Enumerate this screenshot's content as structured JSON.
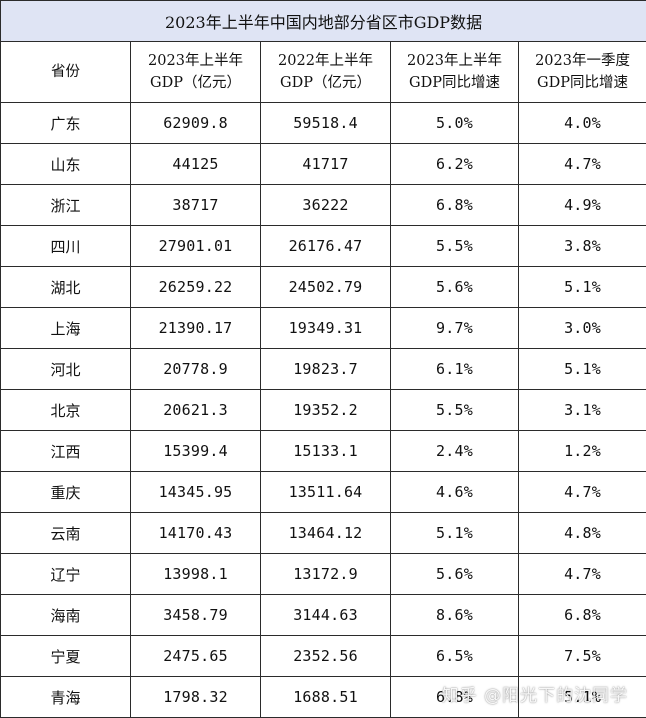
{
  "title": "2023年上半年中国内地部分省区市GDP数据",
  "headers": {
    "province": "省份",
    "gdp2023_line1": "2023年上半年",
    "gdp2023_line2": "GDP（亿元）",
    "gdp2022_line1": "2022年上半年",
    "gdp2022_line2": "GDP（亿元）",
    "growth_h1_line1": "2023年上半年",
    "growth_h1_line2": "GDP同比增速",
    "growth_q1_line1": "2023年一季度",
    "growth_q1_line2": "GDP同比增速"
  },
  "rows": [
    {
      "province": "广东",
      "gdp2023": "62909.8",
      "gdp2022": "59518.4",
      "growth_h1": "5.0%",
      "growth_q1": "4.0%"
    },
    {
      "province": "山东",
      "gdp2023": "44125",
      "gdp2022": "41717",
      "growth_h1": "6.2%",
      "growth_q1": "4.7%"
    },
    {
      "province": "浙江",
      "gdp2023": "38717",
      "gdp2022": "36222",
      "growth_h1": "6.8%",
      "growth_q1": "4.9%"
    },
    {
      "province": "四川",
      "gdp2023": "27901.01",
      "gdp2022": "26176.47",
      "growth_h1": "5.5%",
      "growth_q1": "3.8%"
    },
    {
      "province": "湖北",
      "gdp2023": "26259.22",
      "gdp2022": "24502.79",
      "growth_h1": "5.6%",
      "growth_q1": "5.1%"
    },
    {
      "province": "上海",
      "gdp2023": "21390.17",
      "gdp2022": "19349.31",
      "growth_h1": "9.7%",
      "growth_q1": "3.0%"
    },
    {
      "province": "河北",
      "gdp2023": "20778.9",
      "gdp2022": "19823.7",
      "growth_h1": "6.1%",
      "growth_q1": "5.1%"
    },
    {
      "province": "北京",
      "gdp2023": "20621.3",
      "gdp2022": "19352.2",
      "growth_h1": "5.5%",
      "growth_q1": "3.1%"
    },
    {
      "province": "江西",
      "gdp2023": "15399.4",
      "gdp2022": "15133.1",
      "growth_h1": "2.4%",
      "growth_q1": "1.2%"
    },
    {
      "province": "重庆",
      "gdp2023": "14345.95",
      "gdp2022": "13511.64",
      "growth_h1": "4.6%",
      "growth_q1": "4.7%"
    },
    {
      "province": "云南",
      "gdp2023": "14170.43",
      "gdp2022": "13464.12",
      "growth_h1": "5.1%",
      "growth_q1": "4.8%"
    },
    {
      "province": "辽宁",
      "gdp2023": "13998.1",
      "gdp2022": "13172.9",
      "growth_h1": "5.6%",
      "growth_q1": "4.7%"
    },
    {
      "province": "海南",
      "gdp2023": "3458.79",
      "gdp2022": "3144.63",
      "growth_h1": "8.6%",
      "growth_q1": "6.8%"
    },
    {
      "province": "宁夏",
      "gdp2023": "2475.65",
      "gdp2022": "2352.56",
      "growth_h1": "6.5%",
      "growth_q1": "7.5%"
    },
    {
      "province": "青海",
      "gdp2023": "1798.32",
      "gdp2022": "1688.51",
      "growth_h1": "6.8%",
      "growth_q1": "5.1%"
    }
  ],
  "watermark": "知乎 @阳光下的沈同学",
  "colors": {
    "title_background": "#dfe4f4",
    "border": "#2b2b2b"
  }
}
